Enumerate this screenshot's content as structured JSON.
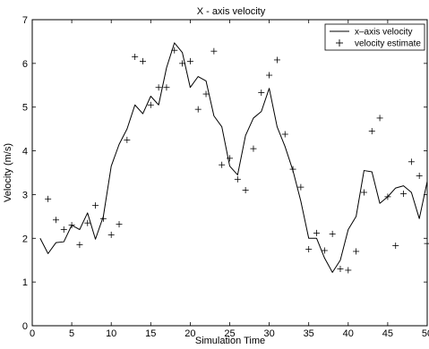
{
  "chart_data": {
    "type": "line",
    "title": "X - axis velocity",
    "xlabel": "Simulation Time",
    "ylabel": "Velocity (m/s)",
    "xlim": [
      0,
      50
    ],
    "ylim": [
      0,
      7
    ],
    "xticks": [
      0,
      5,
      10,
      15,
      20,
      25,
      30,
      35,
      40,
      45,
      50
    ],
    "yticks": [
      0,
      1,
      2,
      3,
      4,
      5,
      6,
      7
    ],
    "grid": false,
    "legend_position": "top-right",
    "series": [
      {
        "name": "x–axis velocity",
        "style": "solid line",
        "color": "#000000",
        "x": [
          1,
          2,
          3,
          4,
          5,
          6,
          7,
          8,
          9,
          10,
          11,
          12,
          13,
          14,
          15,
          16,
          17,
          18,
          19,
          20,
          21,
          22,
          23,
          24,
          25,
          26,
          27,
          28,
          29,
          30,
          31,
          32,
          33,
          34,
          35,
          36,
          37,
          38,
          39,
          40,
          41,
          42,
          43,
          44,
          45,
          46,
          47,
          48,
          49,
          50
        ],
        "y": [
          2.0,
          1.65,
          1.9,
          1.92,
          2.3,
          2.2,
          2.58,
          1.98,
          2.5,
          3.65,
          4.15,
          4.5,
          5.05,
          4.85,
          5.25,
          5.05,
          5.9,
          6.47,
          6.25,
          5.45,
          5.7,
          5.6,
          4.8,
          4.55,
          3.65,
          3.45,
          4.35,
          4.75,
          4.9,
          5.43,
          4.55,
          4.1,
          3.55,
          2.85,
          2.0,
          2.0,
          1.55,
          1.22,
          1.5,
          2.2,
          2.5,
          3.55,
          3.52,
          2.8,
          2.95,
          3.15,
          3.2,
          3.05,
          2.45,
          3.3
        ]
      },
      {
        "name": "velocity estimate",
        "style": "plus markers",
        "color": "#000000",
        "x": [
          2,
          3,
          4,
          5,
          6,
          7,
          8,
          9,
          10,
          11,
          12,
          13,
          14,
          15,
          16,
          17,
          18,
          19,
          20,
          21,
          22,
          23,
          24,
          25,
          26,
          27,
          28,
          29,
          30,
          31,
          32,
          33,
          34,
          35,
          36,
          37,
          38,
          39,
          40,
          41,
          42,
          43,
          44,
          45,
          46,
          47,
          48,
          49,
          50
        ],
        "y": [
          2.9,
          2.42,
          2.2,
          2.3,
          1.85,
          2.35,
          2.75,
          2.45,
          2.08,
          2.32,
          4.25,
          6.15,
          6.05,
          5.05,
          5.45,
          5.45,
          6.3,
          6.0,
          6.05,
          4.95,
          5.3,
          6.28,
          3.68,
          3.83,
          3.35,
          3.1,
          4.05,
          5.33,
          5.73,
          6.08,
          4.38,
          3.58,
          3.17,
          1.75,
          2.12,
          1.72,
          2.1,
          1.3,
          1.27,
          1.7,
          3.05,
          4.45,
          4.75,
          2.95,
          1.83,
          3.02,
          3.75,
          3.43,
          1.88
        ]
      }
    ]
  }
}
